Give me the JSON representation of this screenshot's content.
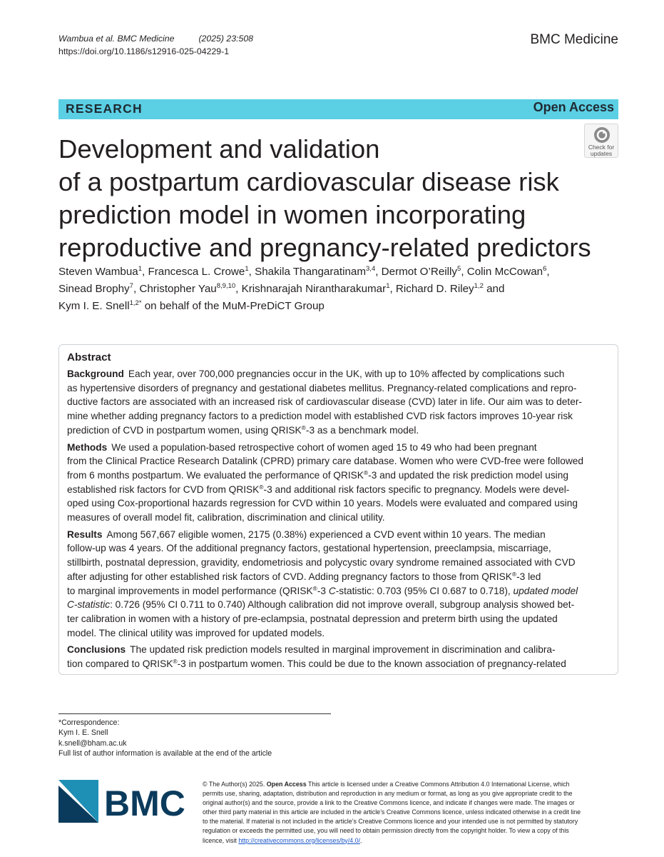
{
  "header": {
    "authors_short": "Wambua et al. BMC Medicine",
    "year_vol": "(2025) 23:508",
    "doi": "https://doi.org/10.1186/s12916-025-04229-1",
    "journal": "BMC Medicine"
  },
  "banner": {
    "section": "RESEARCH",
    "access": "Open Access"
  },
  "check_updates": {
    "line1": "Check for",
    "line2": "updates"
  },
  "title_lines": [
    "Development and validation",
    "of a postpartum cardiovascular disease risk",
    "prediction model in women incorporating",
    "reproductive and pregnancy-related predictors"
  ],
  "authors": {
    "a1": "Steven Wambua",
    "s1": "1",
    "a2": ", Francesca L. Crowe",
    "s2": "1",
    "a3": ", Shakila Thangaratinam",
    "s3": "3,4",
    "a4": ", Dermot O’Reilly",
    "s4": "5",
    "a5": ", Colin McCowan",
    "s5": "6",
    "a6": "Sinead Brophy",
    "s6": "7",
    "a7": ", Christopher Yau",
    "s7": "8,9,10",
    "a8": ", Krishnarajah Nirantharakumar",
    "s8": "1",
    "a9": ", Richard D. Riley",
    "s9": "1,2",
    "a9b": " and",
    "a10": "Kym I. E. Snell",
    "s10": "1,2*",
    "group": " on behalf of the MuM-PreDiCT Group"
  },
  "abstract": {
    "heading": "Abstract",
    "background": {
      "label": "Background",
      "l1": "Each year, over 700,000 pregnancies occur in the UK, with up to 10% affected by complications such",
      "l2": "as hypertensive disorders of pregnancy and gestational diabetes mellitus. Pregnancy-related complications and repro-",
      "l3": "ductive factors are associated with an increased risk of cardiovascular disease (CVD) later in life. Our aim was to deter-",
      "l4": "mine whether adding pregnancy factors to a prediction model with established CVD risk factors improves 10-year risk",
      "l5a": "prediction of CVD in postpartum women, using QRISK",
      "l5sup": "®",
      "l5b": "-3 as a benchmark model."
    },
    "methods": {
      "label": "Methods",
      "l1": "We used a population-based retrospective cohort of women aged 15 to 49 who had been pregnant",
      "l2": "from the Clinical Practice Research Datalink (CPRD) primary care database. Women who were CVD-free were followed",
      "l3a": "from 6 months postpartum. We evaluated the performance of QRISK",
      "l3sup": "®",
      "l3b": "-3 and updated the risk prediction model using",
      "l4a": "established risk factors for CVD from QRISK",
      "l4sup": "®",
      "l4b": "-3 and additional risk factors specific to pregnancy. Models were devel-",
      "l5": "oped using Cox-proportional hazards regression for CVD within 10 years. Models were evaluated and compared using",
      "l6": "measures of overall model fit, calibration, discrimination and clinical utility."
    },
    "results": {
      "label": "Results",
      "l1": "Among 567,667 eligible women, 2175 (0.38%) experienced a CVD event within 10 years. The median",
      "l2": "follow-up was 4 years. Of the additional pregnancy factors, gestational hypertension, preeclampsia, miscarriage,",
      "l3": "stillbirth, postnatal depression, gravidity, endometriosis and polycystic ovary syndrome remained associated with CVD",
      "l4a": "after adjusting for other established risk factors of CVD. Adding pregnancy factors to those from QRISK",
      "l4sup": "®",
      "l4b": "-3 led",
      "l5a": "to marginal improvements in model performance (QRISK",
      "l5sup": "®",
      "l5b": "-3 ",
      "l5i": "C",
      "l5c": "-statistic: 0.703 (95% CI 0.687 to 0.718), ",
      "l5d": "updated model",
      "l6i": "C-statistic",
      "l6b": ": 0.726 (95% CI 0.711 to 0.740) Although calibration did not improve overall, subgroup analysis showed bet-",
      "l7": "ter calibration in women with a history of pre-eclampsia, postnatal depression and preterm birth using the updated",
      "l8": "model. The clinical utility was improved for updated models."
    },
    "conclusions": {
      "label": "Conclusions",
      "l1": "The updated risk prediction models resulted in marginal improvement in discrimination and calibra-",
      "l2a": "tion compared to QRISK",
      "l2sup": "®",
      "l2b": "-3 in postpartum women. This could be due to the known association of pregnancy-related"
    }
  },
  "correspondence": {
    "label": "*Correspondence:",
    "name": "Kym I. E. Snell",
    "email": "k.snell@bham.ac.uk",
    "note": "Full list of author information is available at the end of the article"
  },
  "logo": {
    "text": "BMC"
  },
  "license": {
    "l1a": "© The Author(s) 2025. ",
    "l1b": "Open Access",
    "l1c": " This article is licensed under a Creative Commons Attribution 4.0 International License, which",
    "l2": "permits use, sharing, adaptation, distribution and reproduction in any medium or format, as long as you give appropriate credit to the",
    "l3": "original author(s) and the source, provide a link to the Creative Commons licence, and indicate if changes were made. The images or",
    "l4": "other third party material in this article are included in the article’s Creative Commons licence, unless indicated otherwise in a credit line",
    "l5": "to the material. If material is not included in the article’s Creative Commons licence and your intended use is not permitted by statutory",
    "l6": "regulation or exceeds the permitted use, you will need to obtain permission directly from the copyright holder. To view a copy of this",
    "l7a": "licence, visit ",
    "l7link": "http://creativecommons.org/licenses/by/4.0/",
    "l7b": "."
  },
  "colors": {
    "banner": "#5bcfe3",
    "logo_dark": "#0b3b5c",
    "logo_light": "#1e8fb5",
    "link": "#1a56c8"
  }
}
